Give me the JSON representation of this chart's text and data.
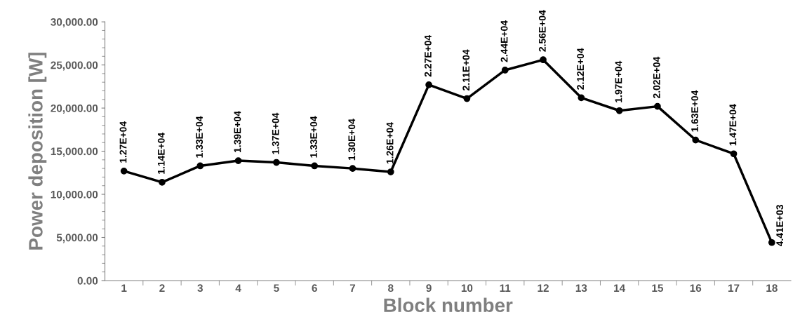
{
  "chart_data": {
    "type": "line",
    "xlabel": "Block number",
    "ylabel": "Power deposition [W]",
    "categories": [
      "1",
      "2",
      "3",
      "4",
      "5",
      "6",
      "7",
      "8",
      "9",
      "10",
      "11",
      "12",
      "13",
      "14",
      "15",
      "16",
      "17",
      "18"
    ],
    "series": [
      {
        "color": "#000000",
        "values": [
          12700,
          11400,
          13300,
          13900,
          13700,
          13300,
          13000,
          12600,
          22700,
          21100,
          24400,
          25600,
          21200,
          19700,
          20200,
          16300,
          14700,
          4410
        ],
        "value_labels": [
          "1.27E+04",
          "1.14E+04",
          "1.33E+04",
          "1.39E+04",
          "1.37E+04",
          "1.33E+04",
          "1.30E+04",
          "1.26E+04",
          "2.27E+04",
          "2.11E+04",
          "2.44E+04",
          "2.56E+04",
          "2.12E+04",
          "1.97E+04",
          "2.02E+04",
          "1.63E+04",
          "1.47E+04",
          "4.41E+03"
        ]
      }
    ],
    "ylim": [
      0,
      30000
    ],
    "yticks": [
      {
        "value": 0,
        "label": "0.00"
      },
      {
        "value": 5000,
        "label": "5,000.00"
      },
      {
        "value": 10000,
        "label": "10,000.00"
      },
      {
        "value": 15000,
        "label": "15,000.00"
      },
      {
        "value": 20000,
        "label": "20,000.00"
      },
      {
        "value": 25000,
        "label": "25,000.00"
      },
      {
        "value": 30000,
        "label": "30,000.00"
      }
    ],
    "grid": false,
    "marker": "circle",
    "line_style": "solid"
  }
}
